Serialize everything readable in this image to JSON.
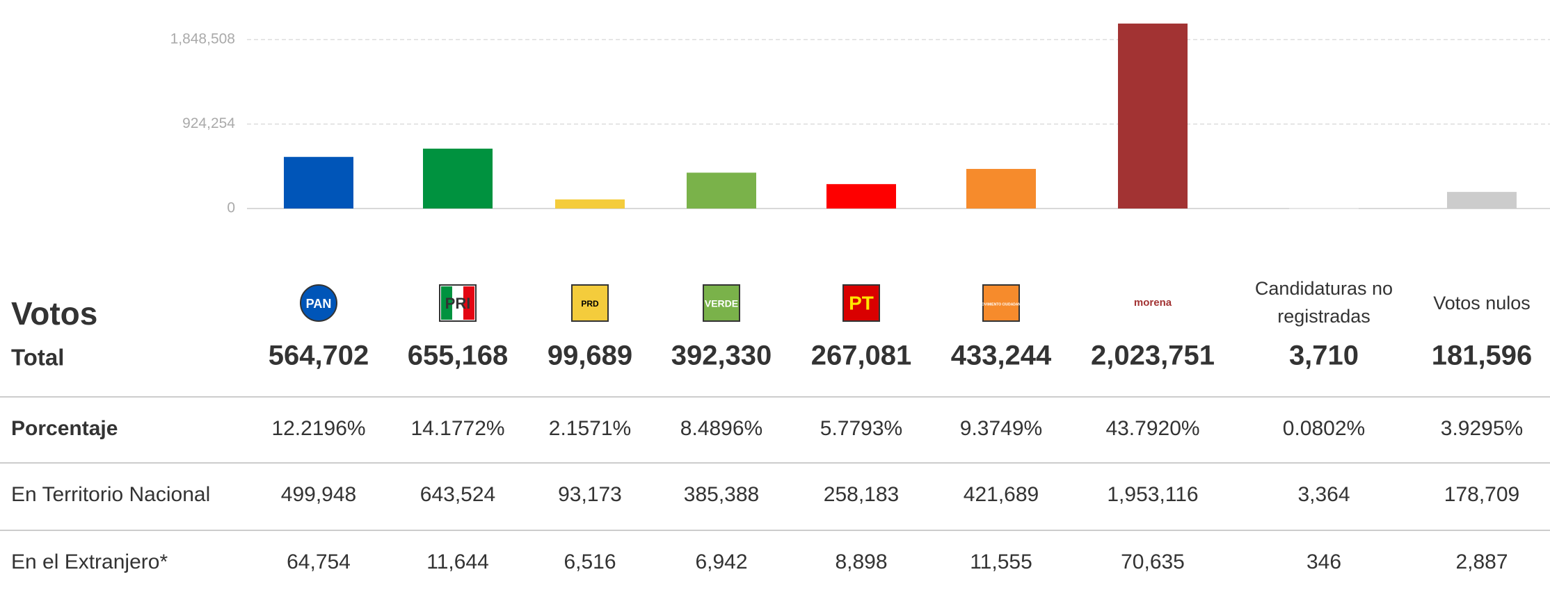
{
  "chart_data": {
    "type": "bar",
    "categories": [
      "PAN",
      "PRI",
      "PRD",
      "VERDE",
      "PT",
      "MOVIMIENTO CIUDADANO",
      "morena",
      "Candidaturas no registradas",
      "Votos nulos"
    ],
    "values": [
      564702,
      655168,
      99689,
      392330,
      267081,
      433244,
      2023751,
      3710,
      181596
    ],
    "value_labels": [
      "564,702",
      "655,168",
      "99,689",
      "392,330",
      "267,081",
      "433,244",
      "2,023,751",
      "3,710",
      "181,596"
    ],
    "colors": [
      "#0055b8",
      "#00923f",
      "#f4cc3c",
      "#7ab24a",
      "#fe0000",
      "#f68b2c",
      "#a23333",
      "#e6e6e6",
      "#cccccc"
    ],
    "ylim": [
      0,
      2000000
    ],
    "yticks": [
      0,
      {
        "value": 924254,
        "label": "924,254"
      },
      {
        "value": 1848508,
        "label": "1,848,508"
      }
    ],
    "grid": true
  },
  "table": {
    "title": "Votos",
    "total_label": "Total",
    "rows": [
      {
        "label": "Porcentaje",
        "cells": [
          "12.2196%",
          "14.1772%",
          "2.1571%",
          "8.4896%",
          "5.7793%",
          "9.3749%",
          "43.7920%",
          "0.0802%",
          "3.9295%"
        ]
      },
      {
        "label": "En Territorio Nacional",
        "cells": [
          "499,948",
          "643,524",
          "93,173",
          "385,388",
          "258,183",
          "421,689",
          "1,953,116",
          "3,364",
          "178,709"
        ]
      },
      {
        "label": "En el Extranjero*",
        "cells": [
          "64,754",
          "11,644",
          "6,516",
          "6,942",
          "8,898",
          "11,555",
          "70,635",
          "346",
          "2,887"
        ]
      }
    ]
  }
}
